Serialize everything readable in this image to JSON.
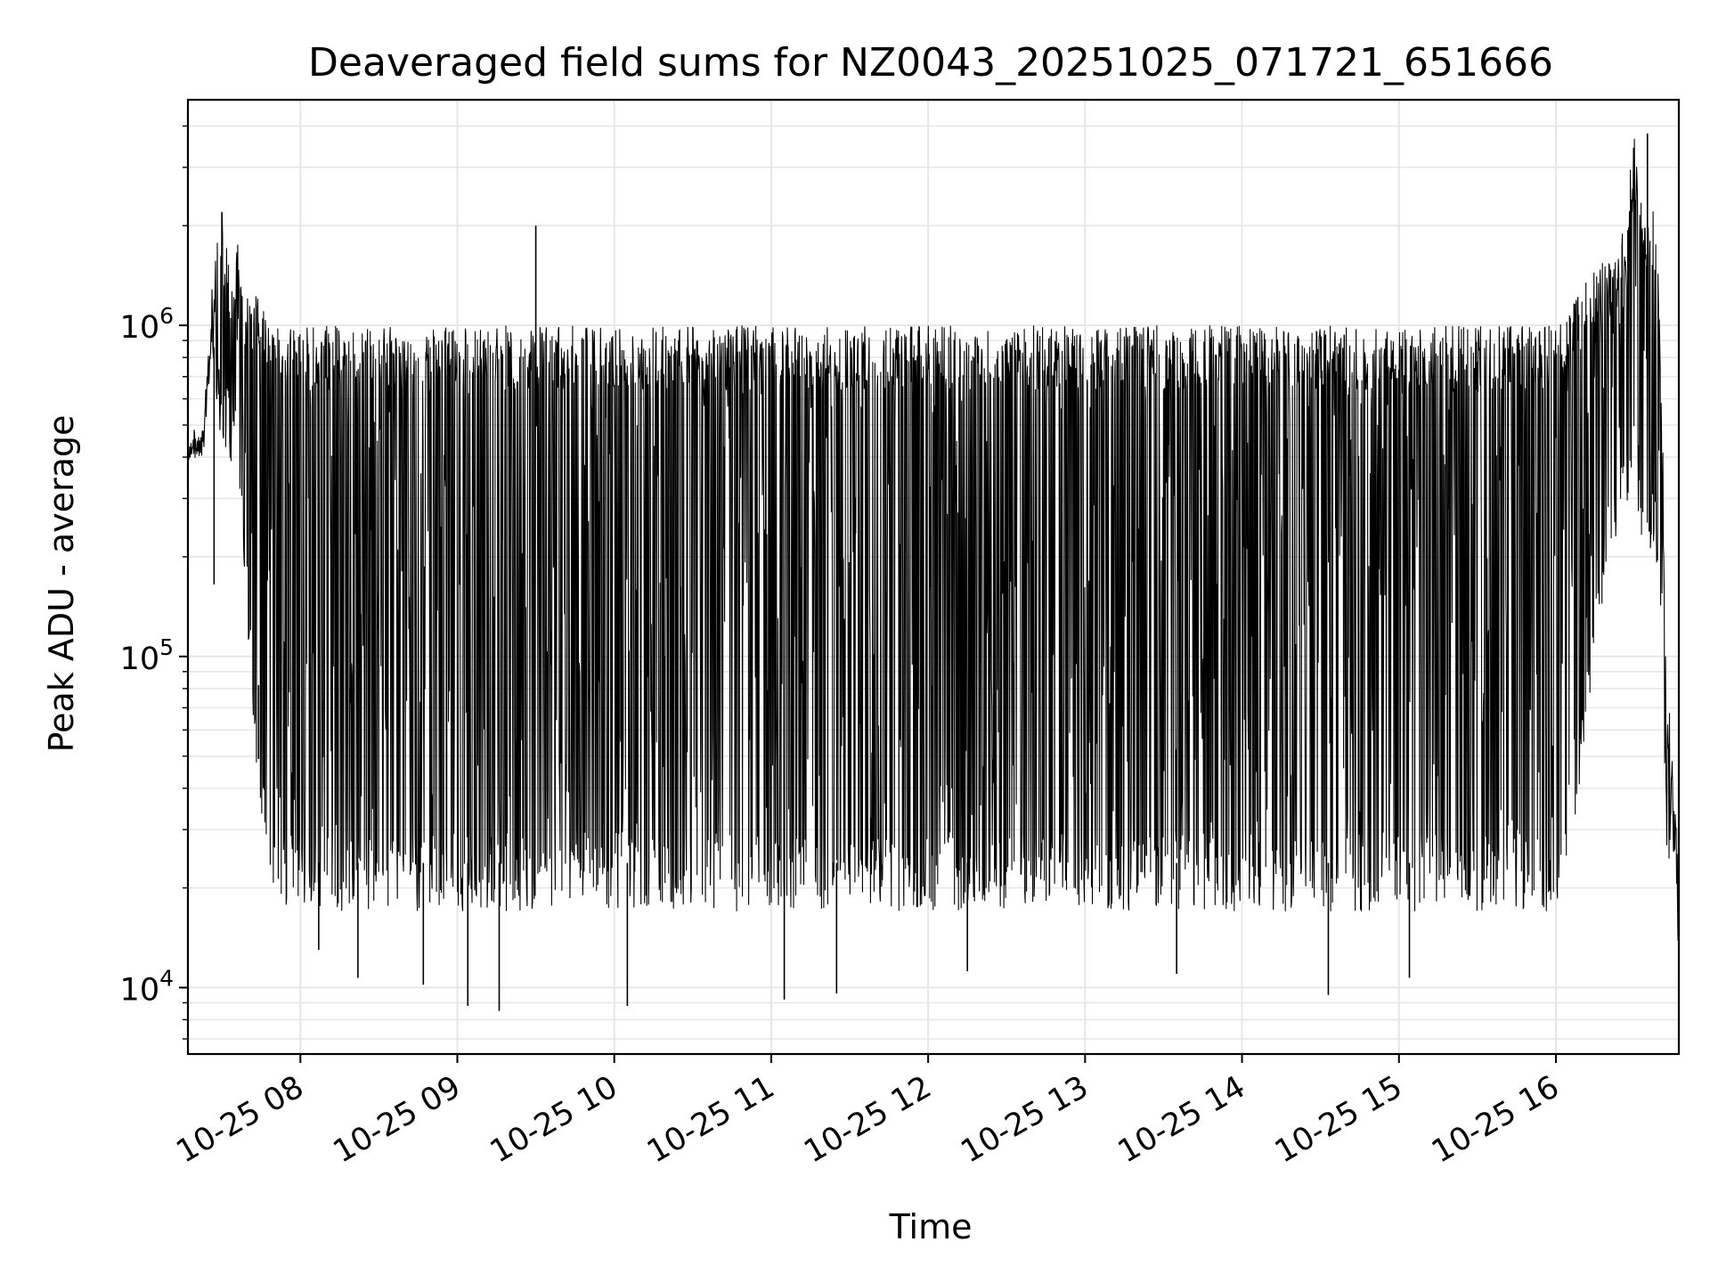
{
  "chart_data": {
    "type": "line",
    "title": "Deaveraged field sums for NZ0043_20251025_071721_651666",
    "xlabel": "Time",
    "ylabel": "Peak ADU - average",
    "yscale": "log",
    "xlim": [
      "2025-10-25 07:17",
      "2025-10-25 16:47"
    ],
    "ylim": [
      6300,
      4800000
    ],
    "grid": true,
    "line_color": "#000000",
    "grid_color": "#e6e6e6",
    "x_ticks": [
      {
        "value": "2025-10-25 08:00",
        "label": "10-25 08"
      },
      {
        "value": "2025-10-25 09:00",
        "label": "10-25 09"
      },
      {
        "value": "2025-10-25 10:00",
        "label": "10-25 10"
      },
      {
        "value": "2025-10-25 11:00",
        "label": "10-25 11"
      },
      {
        "value": "2025-10-25 12:00",
        "label": "10-25 12"
      },
      {
        "value": "2025-10-25 13:00",
        "label": "10-25 13"
      },
      {
        "value": "2025-10-25 14:00",
        "label": "10-25 14"
      },
      {
        "value": "2025-10-25 15:00",
        "label": "10-25 15"
      },
      {
        "value": "2025-10-25 16:00",
        "label": "10-25 16"
      }
    ],
    "y_ticks": [
      {
        "value": 10000,
        "base": "10",
        "exp": "4"
      },
      {
        "value": 100000,
        "base": "10",
        "exp": "5"
      },
      {
        "value": 1000000,
        "base": "10",
        "exp": "6"
      }
    ],
    "series": [
      {
        "x": [
          "2025-10-25 07:17",
          "2025-10-25 07:23",
          "2025-10-25 07:26",
          "2025-10-25 07:28",
          "2025-10-25 07:30",
          "2025-10-25 07:32",
          "2025-10-25 07:34",
          "2025-10-25 07:36",
          "2025-10-25 07:38",
          "2025-10-25 07:40",
          "2025-10-25 07:42",
          "2025-10-25 07:44",
          "2025-10-25 07:46",
          "2025-10-25 07:48",
          "2025-10-25 07:52",
          "2025-10-25 07:56",
          "2025-10-25 08:00",
          "2025-10-25 08:08",
          "2025-10-25 08:20",
          "2025-10-25 08:40",
          "2025-10-25 09:00",
          "2025-10-25 09:30",
          "2025-10-25 10:00",
          "2025-10-25 10:30",
          "2025-10-25 11:00",
          "2025-10-25 11:30",
          "2025-10-25 12:00",
          "2025-10-25 12:30",
          "2025-10-25 13:00",
          "2025-10-25 13:30",
          "2025-10-25 14:00",
          "2025-10-25 14:30",
          "2025-10-25 15:00",
          "2025-10-25 15:30",
          "2025-10-25 16:00",
          "2025-10-25 16:10",
          "2025-10-25 16:20",
          "2025-10-25 16:26",
          "2025-10-25 16:30",
          "2025-10-25 16:34",
          "2025-10-25 16:37",
          "2025-10-25 16:39",
          "2025-10-25 16:41",
          "2025-10-25 16:42",
          "2025-10-25 16:44",
          "2025-10-25 16:45",
          "2025-10-25 16:47"
        ],
        "upper": [
          480000,
          520000,
          1300000,
          1800000,
          2300000,
          1700000,
          1500000,
          1800000,
          1400000,
          1300000,
          1300000,
          1200000,
          1100000,
          1000000,
          1000000,
          1000000,
          1000000,
          1000000,
          1000000,
          1000000,
          1000000,
          1000000,
          1000000,
          1000000,
          1000000,
          1000000,
          1000000,
          1000000,
          1000000,
          1000000,
          1000000,
          1000000,
          1000000,
          1000000,
          1000000,
          1300000,
          1700000,
          2000000,
          3800000,
          2000000,
          2300000,
          1500000,
          400000,
          100000,
          60000,
          40000,
          30000
        ],
        "lower": [
          370000,
          360000,
          750000,
          500000,
          400000,
          400000,
          350000,
          300000,
          200000,
          100000,
          60000,
          35000,
          25000,
          20000,
          18000,
          17000,
          17000,
          17000,
          17000,
          17000,
          17000,
          17000,
          17000,
          17000,
          17000,
          17000,
          17000,
          17000,
          17000,
          17000,
          17000,
          17000,
          17000,
          17000,
          17000,
          40000,
          200000,
          250000,
          300000,
          200000,
          200000,
          150000,
          80000,
          25000,
          20000,
          17000,
          12000
        ],
        "spikes": [
          {
            "x": "2025-10-25 07:27",
            "y": 165000
          },
          {
            "x": "2025-10-25 07:44",
            "y": 82000
          },
          {
            "x": "2025-10-25 08:07",
            "y": 13000
          },
          {
            "x": "2025-10-25 08:22",
            "y": 10700
          },
          {
            "x": "2025-10-25 08:47",
            "y": 10200
          },
          {
            "x": "2025-10-25 09:04",
            "y": 8800
          },
          {
            "x": "2025-10-25 09:16",
            "y": 8500
          },
          {
            "x": "2025-10-25 09:30",
            "y": 2000000
          },
          {
            "x": "2025-10-25 10:05",
            "y": 8800
          },
          {
            "x": "2025-10-25 11:05",
            "y": 9200
          },
          {
            "x": "2025-10-25 11:25",
            "y": 9600
          },
          {
            "x": "2025-10-25 12:15",
            "y": 11200
          },
          {
            "x": "2025-10-25 13:35",
            "y": 11000
          },
          {
            "x": "2025-10-25 14:33",
            "y": 9500
          },
          {
            "x": "2025-10-25 15:04",
            "y": 10700
          },
          {
            "x": "2025-10-25 16:35",
            "y": 3800000
          }
        ]
      }
    ]
  }
}
